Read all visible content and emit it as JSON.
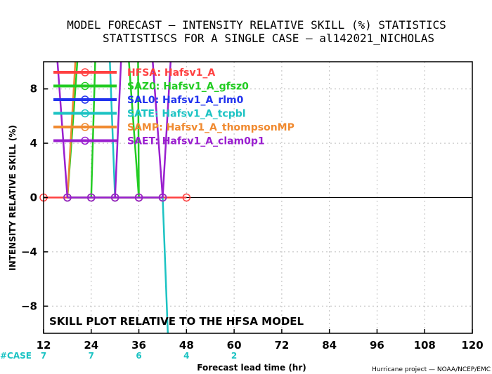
{
  "chart_data": {
    "type": "line",
    "title": "MODEL FORECAST — INTENSITY RELATIVE SKILL (%) STATISTICS",
    "subtitle": "STATISTISCS FOR A SINGLE CASE — al142021_NICHOLAS",
    "xlabel": "Forecast lead time (hr)",
    "ylabel": "INTENSITY RELATIVE SKILL (%)",
    "xlim": [
      12,
      120
    ],
    "ylim": [
      -10,
      10
    ],
    "x_ticks": [
      12,
      24,
      36,
      48,
      60,
      72,
      84,
      96,
      108,
      120
    ],
    "y_ticks": [
      -8,
      -4,
      0,
      4,
      8
    ],
    "grid": true,
    "legend_position": "top-left",
    "annotation": "SKILL PLOT RELATIVE TO THE HFSA MODEL",
    "case_label": "#CASE",
    "case_counts": [
      {
        "x": 12,
        "n": "7"
      },
      {
        "x": 24,
        "n": "7"
      },
      {
        "x": 36,
        "n": "6"
      },
      {
        "x": 48,
        "n": "4"
      },
      {
        "x": 60,
        "n": "2"
      }
    ],
    "credit": "Hurricane project — NOAA/NCEP/EMC",
    "series": [
      {
        "name": "HFSA:  Hafsv1_A",
        "color": "#ff4040",
        "points": [
          [
            12,
            0
          ],
          [
            18,
            0
          ],
          [
            24,
            0
          ],
          [
            30,
            0
          ],
          [
            36,
            0
          ],
          [
            42,
            0
          ],
          [
            48,
            0
          ]
        ]
      },
      {
        "name": "SAZ0:  Hafsv1_A_gfsz0",
        "color": "#22cc22",
        "points": [
          [
            18,
            0
          ],
          [
            24,
            0
          ],
          [
            30,
            0
          ],
          [
            36,
            0
          ],
          [
            42,
            0
          ]
        ],
        "offscale": [
          [
            20.5,
            10
          ],
          [
            25,
            10
          ],
          [
            33.5,
            10
          ],
          [
            35.8,
            10
          ]
        ]
      },
      {
        "name": "SAL0:  Hafsv1_A_rlm0",
        "color": "#2233ee",
        "points": [
          [
            18,
            0
          ],
          [
            24,
            0
          ],
          [
            30,
            0
          ],
          [
            36,
            0
          ],
          [
            42,
            0
          ]
        ]
      },
      {
        "name": "SATE:  Hafsv1_A_tcpbl",
        "color": "#1cc3c3",
        "points": [
          [
            18,
            0
          ],
          [
            24,
            0
          ],
          [
            30,
            0
          ],
          [
            42,
            0
          ]
        ],
        "offscale": [
          [
            28.7,
            10
          ],
          [
            43.3,
            -10
          ]
        ]
      },
      {
        "name": "SAMP:  Hafsv1_A_thompsonMP",
        "color": "#f08a30",
        "points": [
          [
            18,
            0
          ],
          [
            24,
            0
          ],
          [
            30,
            0
          ],
          [
            36,
            0
          ],
          [
            42,
            0
          ]
        ],
        "offscale": [
          [
            20,
            10
          ]
        ]
      },
      {
        "name": "SAET:  Hafsv1_A_clam0p1",
        "color": "#9a1fcf",
        "points": [
          [
            18,
            0
          ],
          [
            24,
            0
          ],
          [
            30,
            0
          ],
          [
            36,
            0
          ],
          [
            42,
            0
          ]
        ],
        "offscale": [
          [
            15.5,
            10
          ],
          [
            31.5,
            10
          ],
          [
            39.5,
            10
          ],
          [
            44,
            10
          ]
        ]
      }
    ]
  }
}
